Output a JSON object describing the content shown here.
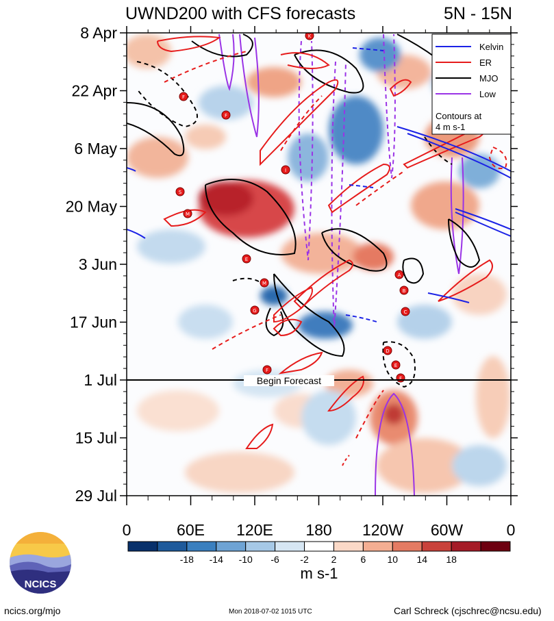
{
  "chart_data": {
    "type": "heatmap",
    "title_left": "UWND200 with CFS forecasts",
    "title_right": "5N - 15N",
    "y_ticks": [
      "8 Apr",
      "22 Apr",
      "6 May",
      "20 May",
      "3 Jun",
      "17 Jun",
      "1 Jul",
      "15 Jul",
      "29 Jul"
    ],
    "x_ticks": [
      "0",
      "60E",
      "120E",
      "180",
      "120W",
      "60W",
      "0"
    ],
    "forecast_label": "Begin Forecast",
    "forecast_row_index": 6,
    "colorbar": {
      "labels": [
        "-18",
        "-14",
        "-10",
        "-6",
        "-2",
        "2",
        "6",
        "10",
        "14",
        "18"
      ],
      "colors": [
        "#08306b",
        "#1e5a9b",
        "#3a7fbf",
        "#6ea3d4",
        "#a6c8e6",
        "#d6e6f3",
        "#ffffff",
        "#fbd9c7",
        "#f4ae92",
        "#e47b63",
        "#c9423b",
        "#a51b27",
        "#6d0010"
      ],
      "unit": "m s-1"
    },
    "legend": [
      {
        "name": "Kelvin",
        "color": "#1b22e6"
      },
      {
        "name": "ER",
        "color": "#e61b1b"
      },
      {
        "name": "MJO",
        "color": "#000000"
      },
      {
        "name": "Low",
        "color": "#9a33e6"
      }
    ],
    "legend_note": [
      "Contours at",
      "4 m s-1"
    ],
    "storm_markers": [
      "K",
      "F",
      "F",
      "I",
      "S",
      "M",
      "E",
      "M",
      "G",
      "F",
      "D",
      "E",
      "F",
      "A",
      "B",
      "C"
    ]
  },
  "footer": {
    "left": "ncics.org/mjo",
    "center": "Mon 2018-07-02 1015 UTC",
    "right": "Carl Schreck (cjschrec@ncsu.edu)",
    "logo_text": "NCICS"
  }
}
